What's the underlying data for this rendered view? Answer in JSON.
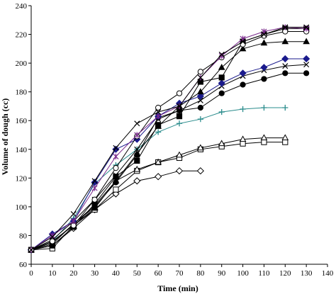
{
  "chart_data": {
    "type": "line",
    "title": "",
    "xlabel": "Time (min)",
    "ylabel": "Volume of dough (cc)",
    "xlim": [
      0,
      140
    ],
    "ylim": [
      60,
      240
    ],
    "xticks": [
      0,
      10,
      20,
      30,
      40,
      50,
      60,
      70,
      80,
      90,
      100,
      110,
      120,
      130,
      140
    ],
    "yticks": [
      60,
      80,
      100,
      120,
      140,
      160,
      180,
      200,
      220,
      240
    ],
    "grid": false,
    "legend": "none",
    "series": [
      {
        "marker": "diamond-open",
        "color": "#000000",
        "x": [
          0,
          10,
          20,
          30,
          40,
          50,
          60,
          70,
          80
        ],
        "y": [
          70,
          73,
          85,
          98,
          109,
          118,
          121,
          125,
          125
        ]
      },
      {
        "marker": "square-open",
        "color": "#000000",
        "x": [
          0,
          10,
          20,
          30,
          40,
          50,
          60,
          70,
          80,
          90,
          100,
          110,
          120
        ],
        "y": [
          70,
          71,
          87,
          98,
          112,
          125,
          131,
          134,
          140,
          142,
          144,
          145,
          145
        ]
      },
      {
        "marker": "triangle-open",
        "color": "#000000",
        "x": [
          0,
          10,
          20,
          30,
          40,
          50,
          60,
          70,
          80,
          90,
          100,
          110,
          120
        ],
        "y": [
          70,
          74,
          88,
          101,
          118,
          126,
          131,
          136,
          141,
          144,
          147,
          148,
          148
        ]
      },
      {
        "marker": "plus",
        "color": "#2a8c8c",
        "x": [
          0,
          10,
          20,
          30,
          40,
          50,
          60,
          70,
          80,
          90,
          100,
          110,
          120
        ],
        "y": [
          70,
          76,
          92,
          116,
          129,
          140,
          152,
          158,
          161,
          166,
          168,
          169,
          169
        ]
      },
      {
        "marker": "circle-filled",
        "color": "#000000",
        "x": [
          0,
          10,
          20,
          30,
          40,
          50,
          60,
          70,
          80,
          90,
          100,
          110,
          120,
          130
        ],
        "y": [
          70,
          75,
          88,
          100,
          117,
          136,
          162,
          167,
          169,
          179,
          185,
          189,
          193,
          193
        ]
      },
      {
        "marker": "x",
        "color": "#000000",
        "x": [
          0,
          10,
          20,
          30,
          40,
          50,
          60,
          70,
          80,
          90,
          100,
          110,
          120,
          130
        ],
        "y": [
          70,
          77,
          90,
          105,
          122,
          140,
          161,
          167,
          174,
          184,
          191,
          195,
          198,
          199
        ]
      },
      {
        "marker": "diamond-filled",
        "color": "#1a1a8c",
        "x": [
          0,
          10,
          20,
          30,
          40,
          50,
          60,
          70,
          80,
          90,
          100,
          110,
          120,
          130
        ],
        "y": [
          70,
          81,
          90,
          117,
          140,
          147,
          163,
          172,
          177,
          186,
          193,
          197,
          203,
          203
        ]
      },
      {
        "marker": "triangle-filled",
        "color": "#000000",
        "x": [
          0,
          10,
          20,
          30,
          40,
          50,
          60,
          70,
          80,
          90,
          100,
          110,
          120,
          130
        ],
        "y": [
          70,
          76,
          87,
          99,
          118,
          137,
          156,
          170,
          180,
          197,
          210,
          214,
          215,
          215
        ]
      },
      {
        "marker": "square-filled",
        "color": "#000000",
        "x": [
          0,
          10,
          20,
          30,
          40,
          50,
          60,
          70,
          80,
          90,
          100,
          110,
          120,
          130
        ],
        "y": [
          70,
          73,
          86,
          102,
          121,
          132,
          157,
          163,
          187,
          190,
          215,
          220,
          224,
          224
        ]
      },
      {
        "marker": "circle-open",
        "color": "#000000",
        "x": [
          0,
          10,
          20,
          30,
          40,
          50,
          60,
          70,
          80,
          90,
          100,
          110,
          120,
          130
        ],
        "y": [
          70,
          76,
          87,
          105,
          127,
          149,
          169,
          179,
          194,
          204,
          213,
          219,
          222,
          222
        ]
      },
      {
        "marker": "star",
        "color": "#7a2a8c",
        "x": [
          0,
          10,
          20,
          30,
          40,
          50,
          60,
          70,
          80,
          90,
          100,
          110,
          120,
          130
        ],
        "y": [
          70,
          80,
          90,
          113,
          135,
          150,
          163,
          170,
          190,
          205,
          217,
          222,
          225,
          224
        ]
      },
      {
        "marker": "x",
        "color": "#000000",
        "x": [
          0,
          10,
          20,
          30,
          40,
          50,
          60,
          70,
          80,
          90,
          100,
          110,
          120,
          130
        ],
        "y": [
          70,
          79,
          95,
          118,
          141,
          158,
          166,
          170,
          190,
          206,
          215,
          220,
          225,
          225
        ]
      }
    ]
  }
}
